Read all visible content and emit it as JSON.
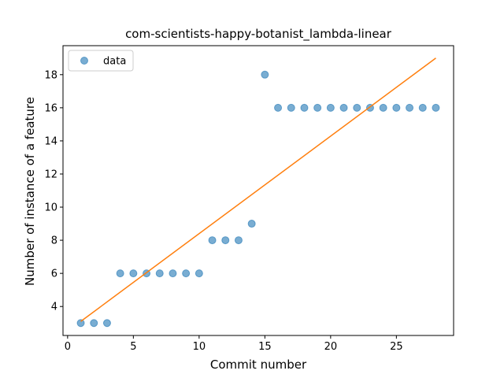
{
  "chart_data": {
    "type": "scatter",
    "title": "com-scientists-happy-botanist_lambda-linear",
    "xlabel": "Commit number",
    "ylabel": "Number of instance of a feature",
    "xlim": [
      -0.35,
      29.35
    ],
    "ylim": [
      2.25,
      19.75
    ],
    "xticks": [
      0,
      5,
      10,
      15,
      20,
      25
    ],
    "yticks": [
      4,
      6,
      8,
      10,
      12,
      14,
      16,
      18
    ],
    "grid": false,
    "legend_position": "upper-left",
    "series": [
      {
        "name": "data",
        "kind": "scatter",
        "color": "#1f77b4",
        "x": [
          1,
          2,
          3,
          4,
          5,
          6,
          7,
          8,
          9,
          10,
          11,
          12,
          13,
          14,
          15,
          16,
          17,
          18,
          19,
          20,
          21,
          22,
          23,
          24,
          25,
          26,
          27,
          28
        ],
        "y": [
          3,
          3,
          3,
          6,
          6,
          6,
          6,
          6,
          6,
          6,
          8,
          8,
          8,
          9,
          18,
          16,
          16,
          16,
          16,
          16,
          16,
          16,
          16,
          16,
          16,
          16,
          16,
          16
        ]
      },
      {
        "kind": "line",
        "color": "#ff7f0e",
        "x": [
          1,
          28
        ],
        "y": [
          3.1,
          19.0
        ]
      }
    ]
  }
}
